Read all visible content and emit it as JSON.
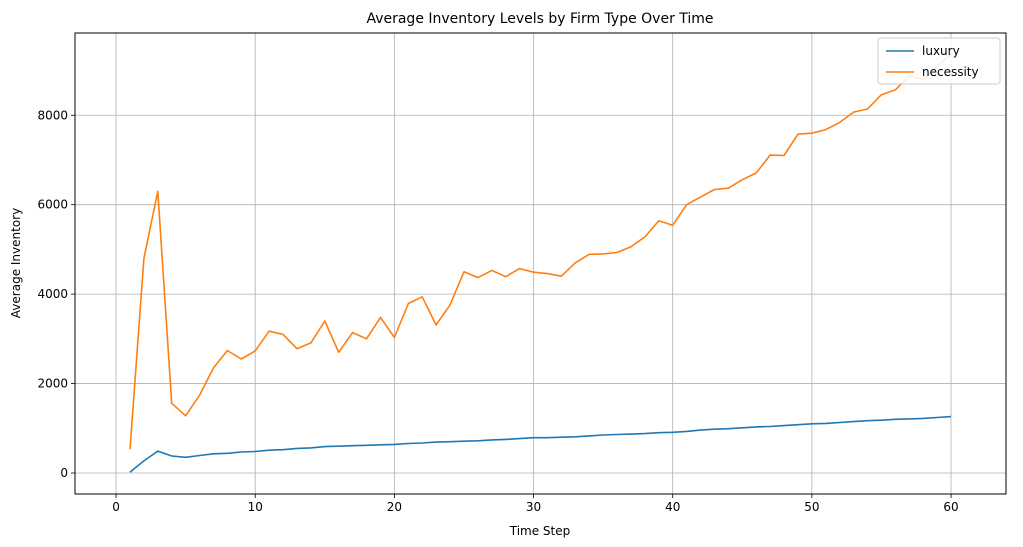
{
  "chart_data": {
    "type": "line",
    "title": "Average Inventory Levels by Firm Type Over Time",
    "xlabel": "Time Step",
    "ylabel": "Average Inventory",
    "xlim": [
      -2.95,
      63.95
    ],
    "ylim": [
      -470,
      9840
    ],
    "xticks": [
      0,
      10,
      20,
      30,
      40,
      50,
      60,
      70
    ],
    "yticks": [
      0,
      2000,
      4000,
      6000,
      8000
    ],
    "grid": true,
    "legend": "top-right",
    "x": [
      1,
      2,
      3,
      4,
      5,
      6,
      7,
      8,
      9,
      10,
      11,
      12,
      13,
      14,
      15,
      16,
      17,
      18,
      19,
      20,
      21,
      22,
      23,
      24,
      25,
      26,
      27,
      28,
      29,
      30,
      31,
      32,
      33,
      34,
      35,
      36,
      37,
      38,
      39,
      40,
      41,
      42,
      43,
      44,
      45,
      46,
      47,
      48,
      49,
      50,
      51,
      52,
      53,
      54,
      55,
      56,
      57,
      58,
      59,
      60
    ],
    "series": [
      {
        "name": "luxury",
        "color": "#1f77b4",
        "values": [
          20,
          270,
          490,
          380,
          350,
          390,
          430,
          440,
          470,
          480,
          510,
          520,
          550,
          560,
          590,
          600,
          610,
          620,
          630,
          640,
          660,
          670,
          690,
          700,
          710,
          720,
          740,
          750,
          770,
          790,
          790,
          800,
          810,
          830,
          850,
          860,
          870,
          880,
          900,
          910,
          930,
          960,
          980,
          990,
          1010,
          1030,
          1040,
          1060,
          1080,
          1100,
          1110,
          1130,
          1150,
          1170,
          1180,
          1200,
          1210,
          1220,
          1240,
          1260
        ]
      },
      {
        "name": "necessity",
        "color": "#ff7f0e",
        "values": [
          530,
          4800,
          6300,
          1560,
          1280,
          1740,
          2350,
          2740,
          2550,
          2730,
          3170,
          3100,
          2780,
          2910,
          3400,
          2700,
          3140,
          3000,
          3480,
          3030,
          3790,
          3940,
          3310,
          3760,
          4500,
          4370,
          4530,
          4390,
          4570,
          4490,
          4460,
          4400,
          4700,
          4890,
          4900,
          4930,
          5060,
          5280,
          5640,
          5540,
          6000,
          6170,
          6340,
          6370,
          6560,
          6710,
          7110,
          7100,
          7580,
          7600,
          7680,
          7840,
          8070,
          8140,
          8460,
          8570,
          8880,
          8800,
          9090,
          9370
        ]
      }
    ]
  }
}
